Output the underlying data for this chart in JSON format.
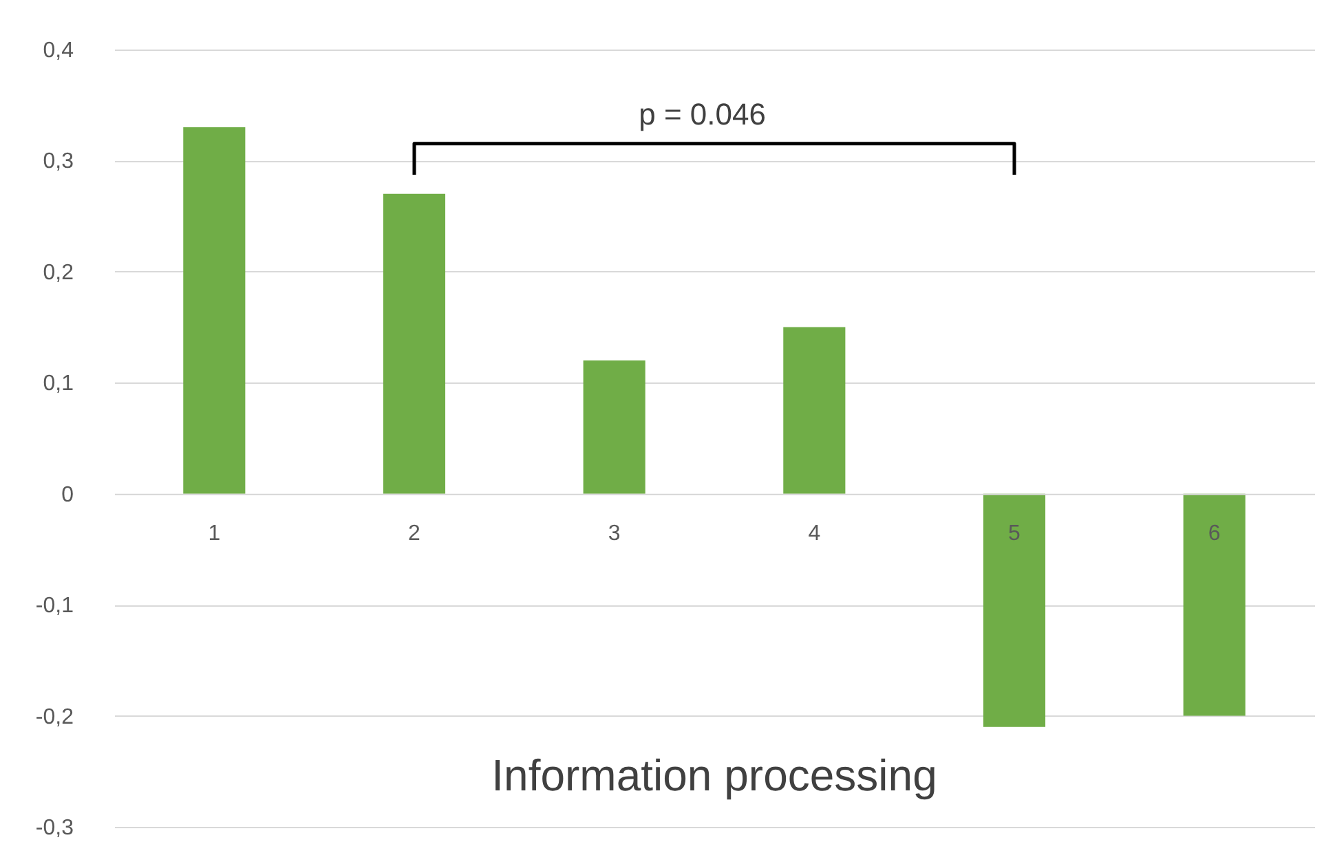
{
  "chart_data": {
    "type": "bar",
    "xlabel": "Information processing",
    "categories": [
      "1",
      "2",
      "3",
      "4",
      "5",
      "6"
    ],
    "values": [
      0.33,
      0.27,
      0.12,
      0.15,
      -0.21,
      -0.2
    ],
    "color": "#70ad47",
    "ylim": [
      -0.3,
      0.4
    ],
    "yticks": [
      {
        "value": -0.3,
        "label": "-0,3"
      },
      {
        "value": -0.2,
        "label": "-0,2"
      },
      {
        "value": -0.1,
        "label": "-0,1"
      },
      {
        "value": 0,
        "label": "0"
      },
      {
        "value": 0.1,
        "label": "0,1"
      },
      {
        "value": 0.2,
        "label": "0,2"
      },
      {
        "value": 0.3,
        "label": "0,3"
      },
      {
        "value": 0.4,
        "label": "0,4"
      }
    ],
    "grid": "y",
    "annotations": [
      "p = 0.046"
    ]
  }
}
